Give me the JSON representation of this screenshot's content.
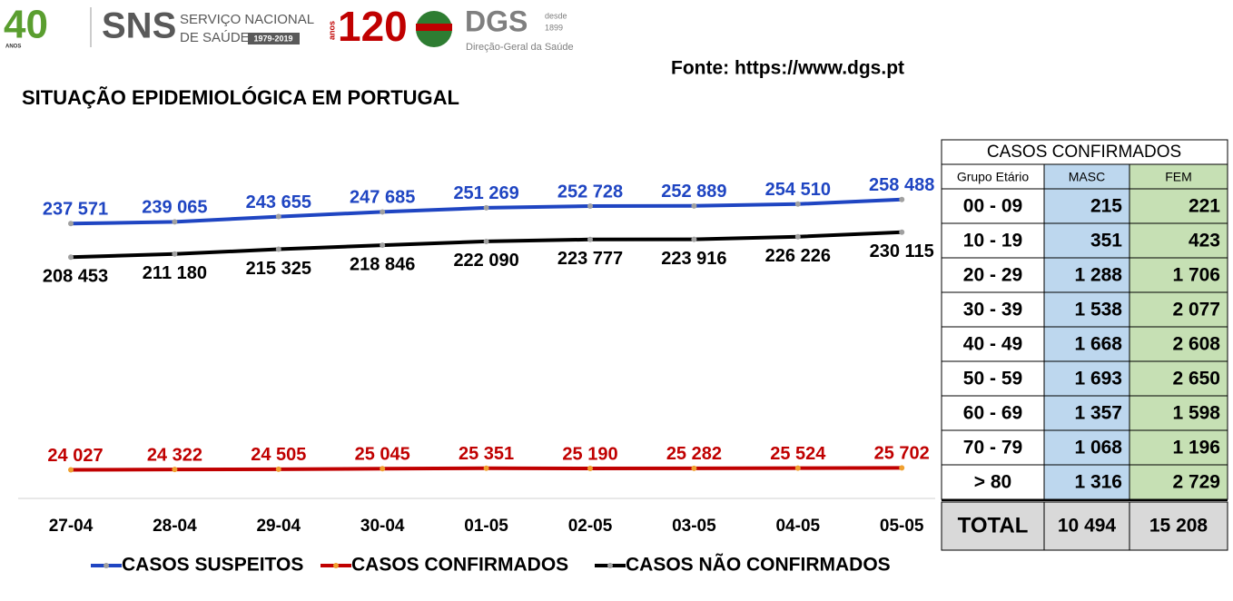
{
  "header": {
    "logo_anos_number": "40",
    "logo_anos_text": "ANOS",
    "sns": "SNS",
    "sns_line1": "SERVIÇO NACIONAL",
    "sns_line2": "DE SAÚDE",
    "sns_years": "1979-2019",
    "dgs_number": "120",
    "dgs_anos": "anos",
    "dgs": "DGS",
    "dgs_desde": "desde",
    "dgs_year": "1899",
    "dgs_full": "Direção-Geral da Saúde",
    "source": "Fonte: https://www.dgs.pt"
  },
  "chart_data": {
    "type": "line",
    "title": "SITUAÇÃO EPIDEMIOLÓGICA EM PORTUGAL",
    "categories": [
      "27-04",
      "28-04",
      "29-04",
      "30-04",
      "01-05",
      "02-05",
      "03-05",
      "04-05",
      "05-05"
    ],
    "ylim": [
      0,
      300000
    ],
    "series": [
      {
        "name": "CASOS SUSPEITOS",
        "color": "#1f45c2",
        "values": [
          237571,
          239065,
          243655,
          247685,
          251269,
          252728,
          252889,
          254510,
          258488
        ],
        "value_labels": [
          "237 571",
          "239 065",
          "243 655",
          "247 685",
          "251 269",
          "252 728",
          "252 889",
          "254 510",
          "258 488"
        ]
      },
      {
        "name": "CASOS CONFIRMADOS",
        "color": "#c00000",
        "values": [
          24027,
          24322,
          24505,
          25045,
          25351,
          25190,
          25282,
          25524,
          25702
        ],
        "value_labels": [
          "24 027",
          "24 322",
          "24 505",
          "25 045",
          "25 351",
          "25 190",
          "25 282",
          "25 524",
          "25 702"
        ]
      },
      {
        "name": "CASOS NÃO CONFIRMADOS",
        "color": "#000000",
        "values": [
          208453,
          211180,
          215325,
          218846,
          222090,
          223777,
          223916,
          226226,
          230115
        ],
        "value_labels": [
          "208 453",
          "211 180",
          "215 325",
          "218 846",
          "222 090",
          "223 777",
          "223 916",
          "226 226",
          "230 115"
        ]
      }
    ],
    "legend": "bottom"
  },
  "table": {
    "title": "CASOS CONFIRMADOS",
    "columns": [
      "Grupo Etário",
      "MASC",
      "FEM"
    ],
    "rows": [
      [
        "00 - 09",
        "215",
        "221"
      ],
      [
        "10 - 19",
        "351",
        "423"
      ],
      [
        "20 - 29",
        "1 288",
        "1 706"
      ],
      [
        "30 - 39",
        "1 538",
        "2 077"
      ],
      [
        "40 - 49",
        "1 668",
        "2 608"
      ],
      [
        "50 - 59",
        "1 693",
        "2 650"
      ],
      [
        "60 - 69",
        "1 357",
        "1 598"
      ],
      [
        "70 - 79",
        "1 068",
        "1 196"
      ],
      [
        "> 80",
        "1 316",
        "2 729"
      ]
    ],
    "total": [
      "TOTAL",
      "10 494",
      "15 208"
    ]
  }
}
